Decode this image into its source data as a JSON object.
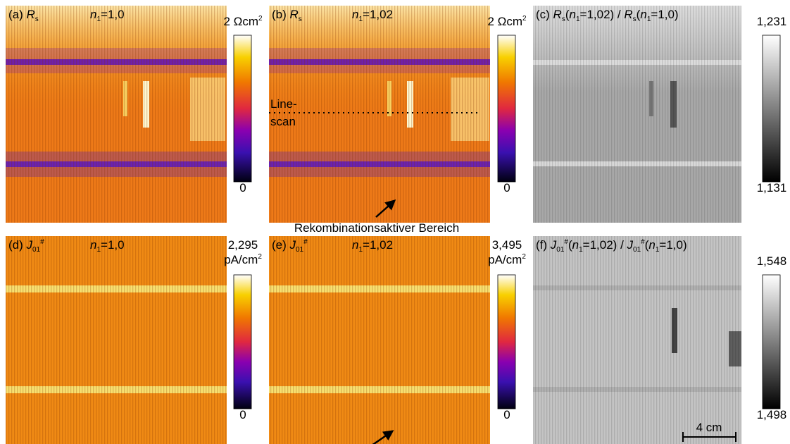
{
  "panels": [
    {
      "letter": "(a) ",
      "symbol": "R",
      "symbol_sub": "s",
      "n": "n",
      "n_sub": "1",
      "n_value": "=1,0"
    },
    {
      "letter": "(b) ",
      "symbol": "R",
      "symbol_sub": "s",
      "n": "n",
      "n_sub": "1",
      "n_value": "=1,02"
    },
    {
      "ratio": [
        "(c) ",
        "R",
        "s",
        "(",
        "n",
        "1",
        "=1,02) / ",
        "R",
        "s",
        "(",
        "n",
        "1",
        "=1,0)"
      ]
    },
    {
      "letter": "(d) ",
      "symbol": "J",
      "symbol_sub": "01",
      "symbol_sup": "#",
      "n": "n",
      "n_sub": "1",
      "n_value": "=1,0"
    },
    {
      "letter": "(e) ",
      "symbol": "J",
      "symbol_sub": "01",
      "symbol_sup": "#",
      "n": "n",
      "n_sub": "1",
      "n_value": "=1,02"
    },
    {
      "ratio": [
        "(f) ",
        "J",
        "01",
        "#",
        "(",
        "n",
        "1",
        "=1,02) / ",
        "J",
        "01",
        "#",
        "(",
        "n",
        "1",
        "=1,0)"
      ]
    }
  ],
  "colorbars": [
    {
      "top": [
        "2 Ωcm",
        "2"
      ],
      "bottom": "0"
    },
    {
      "top": [
        "2 Ωcm",
        "2"
      ],
      "bottom": "0"
    },
    {
      "top": [
        "1,231"
      ],
      "bottom": "1,131"
    },
    {
      "top": [
        "2,295",
        "pA/cm",
        "2"
      ],
      "bottom": "0"
    },
    {
      "top": [
        "3,495",
        "pA/cm",
        "2"
      ],
      "bottom": "0"
    },
    {
      "top": [
        "1,548"
      ],
      "bottom": "1,498"
    }
  ],
  "annotations": {
    "linescan": [
      "Line-",
      "scan"
    ],
    "region": "Rekombinationsaktiver Bereich",
    "scale_bar": "4 cm"
  }
}
